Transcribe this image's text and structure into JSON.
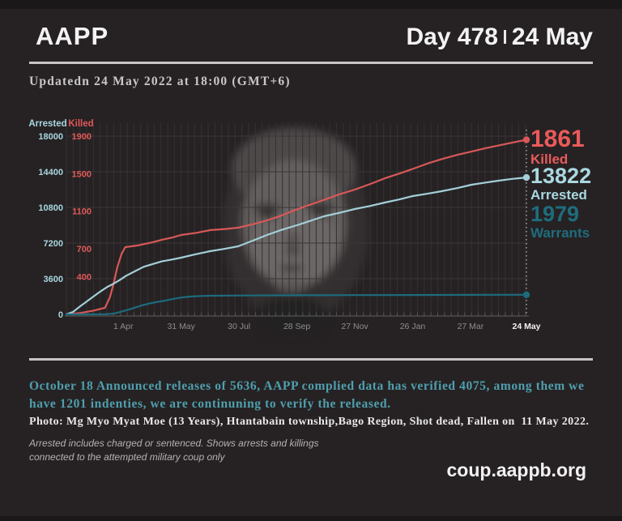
{
  "header": {
    "brand": "AAPP",
    "day_label": "Day 478",
    "date_label": "24 May"
  },
  "updated_line": "Updatedn 24 May 2022 at 18:00 (GMT+6)",
  "chart_data": {
    "type": "line",
    "x_domain_days": [
      0,
      477
    ],
    "x_ticks": [
      {
        "day": 59,
        "label": "1 Apr"
      },
      {
        "day": 119,
        "label": "31 May"
      },
      {
        "day": 179,
        "label": "30 Jul"
      },
      {
        "day": 239,
        "label": "28 Sep"
      },
      {
        "day": 299,
        "label": "27 Nov"
      },
      {
        "day": 359,
        "label": "26 Jan"
      },
      {
        "day": 419,
        "label": "27 Mar"
      },
      {
        "day": 477,
        "label": "24 May",
        "bold": true
      }
    ],
    "axes": {
      "arrested": {
        "title": "Arrested",
        "color": "#a8d7e0",
        "max": 18000,
        "ticks": [
          18000,
          14400,
          10800,
          7200,
          3600
        ],
        "zero_label": "0"
      },
      "killed": {
        "title": "Killed",
        "color": "#e25858",
        "max": 1900,
        "ticks": [
          1900,
          1500,
          1100,
          700,
          400
        ]
      }
    },
    "grid": {
      "vertical_interval_days": 7,
      "horizontal": "at-arrested-ticks"
    },
    "series": [
      {
        "name": "Killed",
        "axis": "killed",
        "color": "#d85858",
        "points": [
          [
            0,
            0
          ],
          [
            14,
            15
          ],
          [
            28,
            40
          ],
          [
            40,
            70
          ],
          [
            45,
            180
          ],
          [
            49,
            330
          ],
          [
            53,
            510
          ],
          [
            57,
            640
          ],
          [
            61,
            717
          ],
          [
            74,
            735
          ],
          [
            90,
            770
          ],
          [
            99,
            795
          ],
          [
            110,
            820
          ],
          [
            119,
            846
          ],
          [
            135,
            870
          ],
          [
            149,
            898
          ],
          [
            165,
            910
          ],
          [
            178,
            924
          ],
          [
            195,
            965
          ],
          [
            208,
            1002
          ],
          [
            222,
            1050
          ],
          [
            239,
            1120
          ],
          [
            253,
            1170
          ],
          [
            267,
            1220
          ],
          [
            283,
            1280
          ],
          [
            299,
            1330
          ],
          [
            315,
            1390
          ],
          [
            330,
            1450
          ],
          [
            345,
            1500
          ],
          [
            359,
            1550
          ],
          [
            375,
            1610
          ],
          [
            389,
            1655
          ],
          [
            405,
            1700
          ],
          [
            420,
            1735
          ],
          [
            434,
            1770
          ],
          [
            448,
            1800
          ],
          [
            462,
            1830
          ],
          [
            477,
            1861
          ]
        ]
      },
      {
        "name": "Arrested",
        "axis": "arrested",
        "color": "#a4cfd8",
        "points": [
          [
            0,
            0
          ],
          [
            7,
            250
          ],
          [
            14,
            800
          ],
          [
            21,
            1300
          ],
          [
            28,
            1800
          ],
          [
            35,
            2300
          ],
          [
            42,
            2750
          ],
          [
            49,
            3100
          ],
          [
            55,
            3450
          ],
          [
            62,
            3900
          ],
          [
            70,
            4300
          ],
          [
            80,
            4800
          ],
          [
            90,
            5100
          ],
          [
            99,
            5350
          ],
          [
            110,
            5550
          ],
          [
            119,
            5727
          ],
          [
            133,
            6050
          ],
          [
            149,
            6382
          ],
          [
            163,
            6600
          ],
          [
            178,
            6873
          ],
          [
            192,
            7400
          ],
          [
            208,
            8018
          ],
          [
            222,
            8500
          ],
          [
            239,
            9000
          ],
          [
            253,
            9450
          ],
          [
            267,
            9900
          ],
          [
            283,
            10250
          ],
          [
            299,
            10636
          ],
          [
            315,
            10950
          ],
          [
            330,
            11291
          ],
          [
            345,
            11600
          ],
          [
            359,
            11945
          ],
          [
            375,
            12200
          ],
          [
            389,
            12436
          ],
          [
            405,
            12750
          ],
          [
            420,
            13091
          ],
          [
            434,
            13300
          ],
          [
            448,
            13500
          ],
          [
            462,
            13680
          ],
          [
            477,
            13822
          ]
        ]
      },
      {
        "name": "Warrants",
        "axis": "arrested",
        "color": "#1d6b7d",
        "points": [
          [
            0,
            0
          ],
          [
            42,
            20
          ],
          [
            50,
            100
          ],
          [
            56,
            250
          ],
          [
            62,
            420
          ],
          [
            70,
            650
          ],
          [
            78,
            900
          ],
          [
            86,
            1100
          ],
          [
            94,
            1250
          ],
          [
            102,
            1380
          ],
          [
            110,
            1550
          ],
          [
            119,
            1700
          ],
          [
            128,
            1800
          ],
          [
            140,
            1860
          ],
          [
            149,
            1885
          ],
          [
            180,
            1905
          ],
          [
            239,
            1930
          ],
          [
            300,
            1945
          ],
          [
            359,
            1955
          ],
          [
            420,
            1968
          ],
          [
            477,
            1979
          ]
        ]
      }
    ],
    "totals": [
      {
        "value": "1861",
        "label": "Killed",
        "color": "#ea5a5a"
      },
      {
        "value": "13822",
        "label": "Arrested",
        "color": "#aad8e1"
      },
      {
        "value": "1979",
        "label": "Warrants",
        "color": "#1e6d7e"
      }
    ]
  },
  "notes": {
    "release_note": "October 18 Announced releases of 5636, AAPP complied data has verified 4075, among them we have 1201 indenties, we are continuning to verify the released.",
    "photo_caption": "Photo: Mg Myo Myat Moe (13 Years), Htantabain township,Bago Region, Shot dead, Fallen on  11 May 2022.",
    "methodology_line1": "Arrested includes charged or sentenced. Shows arrests and killings",
    "methodology_line2": "connected to the attempted military coup only",
    "website": "coup.aappb.org"
  }
}
